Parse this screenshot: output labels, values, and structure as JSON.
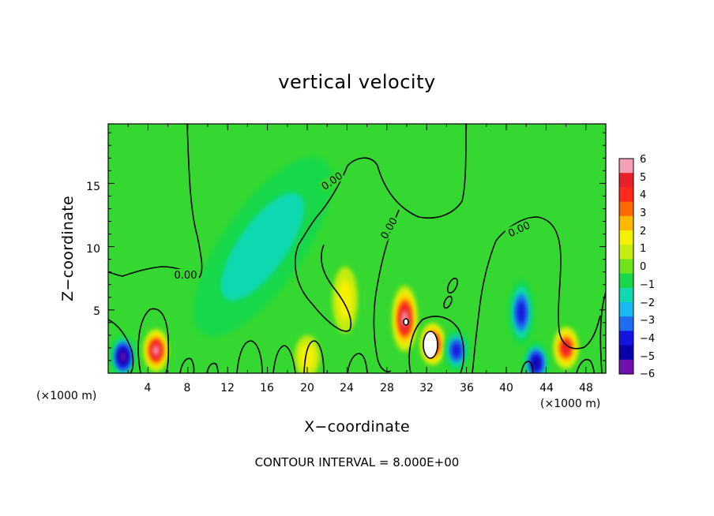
{
  "chart_data": {
    "type": "heatmap",
    "title": "vertical velocity",
    "xlabel": "X−coordinate",
    "ylabel": "Z−coordinate",
    "x_unit": "(×1000 m)",
    "x_ticks": [
      "4",
      "8",
      "12",
      "16",
      "20",
      "24",
      "28",
      "32",
      "36",
      "40",
      "44",
      "48"
    ],
    "y_ticks": [
      "5",
      "10",
      "15"
    ],
    "xlim": [
      0,
      50
    ],
    "ylim": [
      0,
      19.7
    ],
    "colorbar": {
      "ticks": [
        "6",
        "5",
        "4",
        "3",
        "2",
        "1",
        "0",
        "−1",
        "−2",
        "−3",
        "−4",
        "−5",
        "−6"
      ],
      "range": [
        -6,
        6
      ],
      "colors": [
        "#f4a0b4",
        "#e8202a",
        "#ff2a1a",
        "#ff6a00",
        "#ffb800",
        "#f4f000",
        "#c4ec10",
        "#6ee21a",
        "#18d84a",
        "#10d8b0",
        "#18b8f0",
        "#1f6ef2",
        "#1414e0",
        "#0a00a8",
        "#7010b0"
      ]
    },
    "contour_labels": [
      "0.00",
      "0.00",
      "0.00",
      "0.00"
    ],
    "footer": "CONTOUR INTERVAL = 8.000E+00",
    "features": [
      {
        "x": 1.5,
        "z": 1.3,
        "value": -5.5
      },
      {
        "x": 4.8,
        "z": 1.8,
        "value": 6
      },
      {
        "x": 20.0,
        "z": 1.3,
        "value": 2
      },
      {
        "x": 23.8,
        "z": 5.8,
        "value": 2
      },
      {
        "x": 29.8,
        "z": 4.3,
        "value": 6
      },
      {
        "x": 32.6,
        "z": 2.3,
        "value": 6
      },
      {
        "x": 35.0,
        "z": 1.8,
        "value": -3.5
      },
      {
        "x": 41.5,
        "z": 4.8,
        "value": -3.5
      },
      {
        "x": 43.0,
        "z": 0.8,
        "value": -5
      },
      {
        "x": 46.0,
        "z": 2.0,
        "value": 5
      },
      {
        "x": 15.5,
        "z": 10.0,
        "value": -1.5
      }
    ]
  }
}
